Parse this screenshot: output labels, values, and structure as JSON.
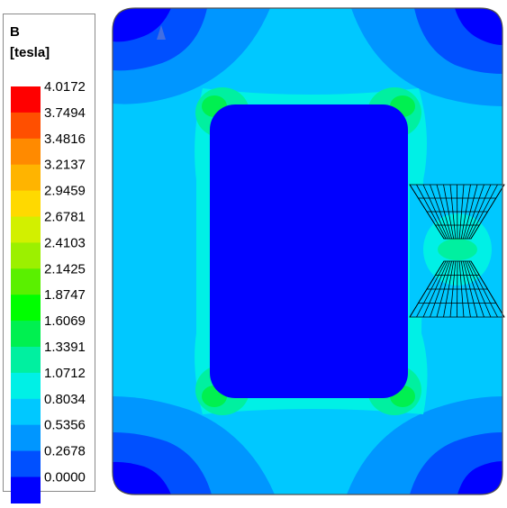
{
  "legend": {
    "title": "B",
    "unit": "[tesla]",
    "levels": [
      {
        "label": "4.0172",
        "color": "#ff0000"
      },
      {
        "label": "3.7494",
        "color": "#ff4f00"
      },
      {
        "label": "3.4816",
        "color": "#ff8a00"
      },
      {
        "label": "3.2137",
        "color": "#ffb400"
      },
      {
        "label": "2.9459",
        "color": "#ffd900"
      },
      {
        "label": "2.6781",
        "color": "#d2f000"
      },
      {
        "label": "2.4103",
        "color": "#9cf000"
      },
      {
        "label": "2.1425",
        "color": "#5af000"
      },
      {
        "label": "1.8747",
        "color": "#00ff00"
      },
      {
        "label": "1.6069",
        "color": "#00f050"
      },
      {
        "label": "1.3391",
        "color": "#00f0a0"
      },
      {
        "label": "1.0712",
        "color": "#00f0e6"
      },
      {
        "label": "0.8034",
        "color": "#00c8ff"
      },
      {
        "label": "0.5356",
        "color": "#0096ff"
      },
      {
        "label": "0.2678",
        "color": "#0050ff"
      },
      {
        "label": "0.0000",
        "color": "#0000ff"
      }
    ]
  },
  "plot": {
    "colors": {
      "air_low": "#0000ff",
      "band_0_27": "#0050ff",
      "band_0_54": "#0096ff",
      "band_0_80": "#00c8ff",
      "band_1_07": "#00f0e6",
      "band_1_34": "#00f0a0",
      "band_1_61": "#00f050",
      "mesh": "#000000",
      "frame": "#505050"
    }
  }
}
